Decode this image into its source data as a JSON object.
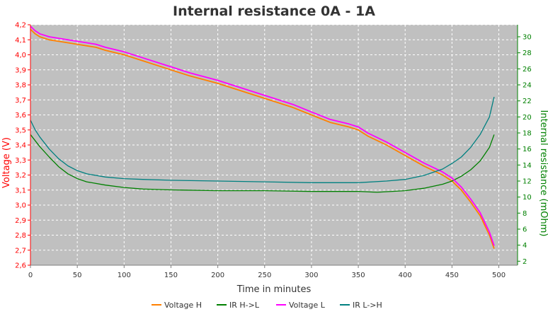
{
  "chart_data": {
    "type": "line",
    "title": "Internal resistance  0A - 1A",
    "xlabel": "Time in minutes",
    "ylabel_left": "Voltage (V)",
    "ylabel_right": "Internal resistance (mOhm)",
    "xlim": [
      0,
      520
    ],
    "ylim_left": [
      2.6,
      4.2
    ],
    "ylim_right": [
      1.5,
      31.5
    ],
    "x_ticks": [
      0,
      50,
      100,
      150,
      200,
      250,
      300,
      350,
      400,
      450,
      500
    ],
    "y_left_ticks": [
      2.6,
      2.7,
      2.8,
      2.9,
      3.0,
      3.1,
      3.2,
      3.3,
      3.4,
      3.5,
      3.6,
      3.7,
      3.8,
      3.9,
      4.0,
      4.1,
      4.2
    ],
    "y_left_tick_labels": [
      "2,6",
      "2,7",
      "2,8",
      "2,9",
      "3,0",
      "3,1",
      "3,2",
      "3,3",
      "3,4",
      "3,5",
      "3,6",
      "3,7",
      "3,8",
      "3,9",
      "4,0",
      "4,1",
      "4,2"
    ],
    "y_right_ticks": [
      2,
      4,
      6,
      8,
      10,
      12,
      14,
      16,
      18,
      20,
      22,
      24,
      26,
      28,
      30
    ],
    "grid": true,
    "legend_position": "bottom",
    "colors": {
      "left_axis": "#ff0000",
      "right_axis": "#008000",
      "plot_bg": "#c0c0c0",
      "grid": "#ffffff"
    },
    "series": [
      {
        "name": "Voltage H",
        "axis": "left",
        "color": "#ff8000",
        "x": [
          0,
          5,
          10,
          20,
          30,
          50,
          70,
          80,
          100,
          120,
          150,
          170,
          200,
          230,
          250,
          280,
          300,
          320,
          340,
          350,
          360,
          380,
          400,
          420,
          440,
          450,
          460,
          470,
          480,
          490,
          495
        ],
        "y": [
          4.17,
          4.14,
          4.12,
          4.1,
          4.09,
          4.07,
          4.05,
          4.03,
          4.0,
          3.96,
          3.9,
          3.86,
          3.81,
          3.75,
          3.71,
          3.65,
          3.6,
          3.55,
          3.52,
          3.5,
          3.46,
          3.4,
          3.33,
          3.26,
          3.2,
          3.16,
          3.1,
          3.02,
          2.93,
          2.8,
          2.71
        ]
      },
      {
        "name": "IR H->L",
        "axis": "right",
        "color": "#008000",
        "x": [
          0,
          10,
          20,
          30,
          40,
          50,
          60,
          80,
          100,
          120,
          150,
          200,
          250,
          300,
          350,
          370,
          400,
          420,
          440,
          450,
          460,
          470,
          480,
          490,
          495
        ],
        "y": [
          17.8,
          16.3,
          15.0,
          13.8,
          12.9,
          12.3,
          11.9,
          11.5,
          11.2,
          11.0,
          10.9,
          10.8,
          10.8,
          10.7,
          10.7,
          10.6,
          10.8,
          11.1,
          11.6,
          12.0,
          12.6,
          13.4,
          14.5,
          16.2,
          17.8
        ]
      },
      {
        "name": "Voltage L",
        "axis": "left",
        "color": "#ff00ff",
        "x": [
          0,
          5,
          10,
          20,
          30,
          50,
          70,
          80,
          100,
          120,
          150,
          170,
          200,
          230,
          250,
          280,
          300,
          320,
          340,
          350,
          360,
          380,
          400,
          420,
          440,
          450,
          460,
          470,
          480,
          490,
          495
        ],
        "y": [
          4.19,
          4.16,
          4.14,
          4.12,
          4.11,
          4.09,
          4.07,
          4.05,
          4.02,
          3.98,
          3.92,
          3.88,
          3.83,
          3.77,
          3.73,
          3.67,
          3.62,
          3.57,
          3.54,
          3.52,
          3.48,
          3.42,
          3.35,
          3.28,
          3.22,
          3.18,
          3.12,
          3.04,
          2.95,
          2.82,
          2.73
        ]
      },
      {
        "name": "IR L->H",
        "axis": "right",
        "color": "#008080",
        "x": [
          0,
          5,
          10,
          20,
          30,
          40,
          50,
          60,
          80,
          100,
          120,
          150,
          200,
          250,
          300,
          350,
          380,
          400,
          420,
          440,
          450,
          460,
          470,
          480,
          490,
          495
        ],
        "y": [
          19.6,
          18.4,
          17.5,
          16.0,
          14.8,
          13.9,
          13.3,
          12.9,
          12.5,
          12.3,
          12.2,
          12.1,
          12.0,
          11.9,
          11.8,
          11.8,
          12.0,
          12.2,
          12.7,
          13.5,
          14.2,
          15.0,
          16.2,
          17.8,
          20.0,
          22.5
        ]
      }
    ]
  }
}
